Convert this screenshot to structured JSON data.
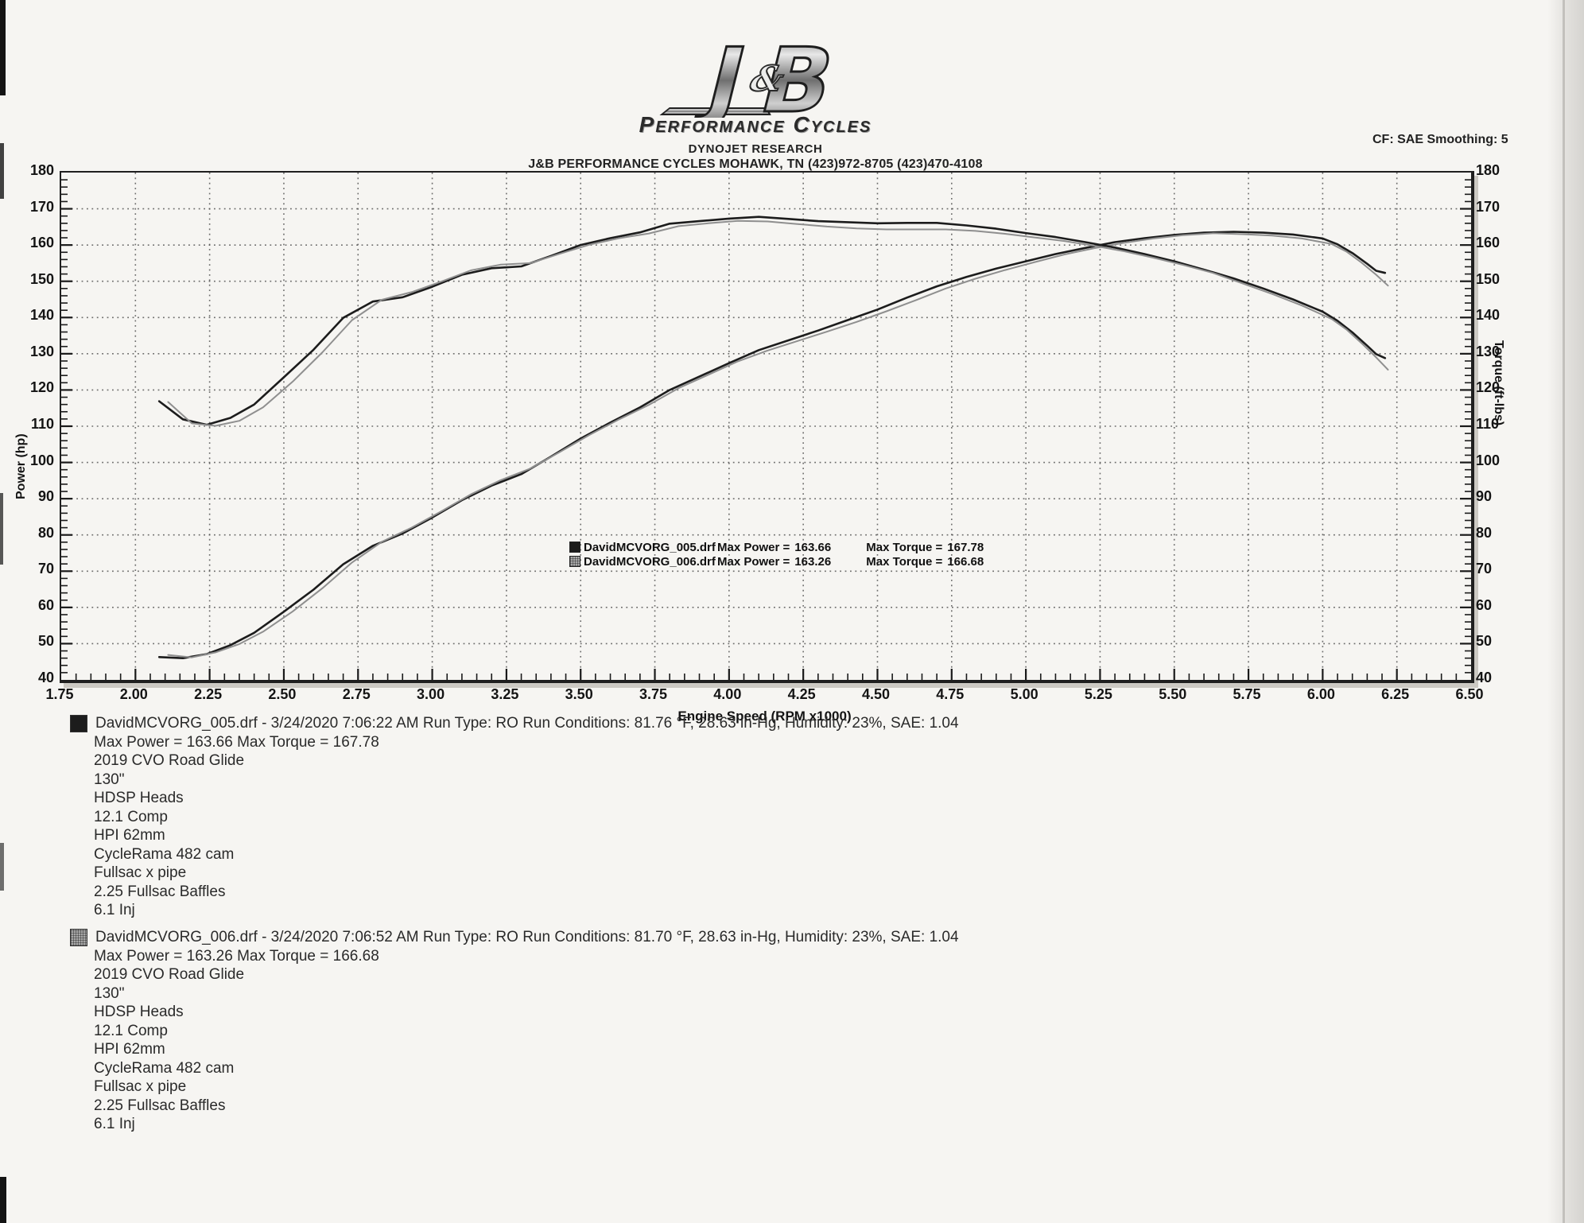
{
  "header": {
    "logo_j": "J",
    "logo_amp": "&",
    "logo_b": "B",
    "logo_sub": "Performance Cycles",
    "line1": "DYNOJET RESEARCH",
    "line2": "J&B PERFORMANCE CYCLES MOHAWK, TN  (423)972-8705 (423)470-4108",
    "correction_smoothing": "CF: SAE  Smoothing: 5"
  },
  "chart_data": {
    "type": "line",
    "xlabel": "Engine Speed (RPM x1000)",
    "ylabel_left": "Power (hp)",
    "ylabel_right": "Torque (ft-lbs)",
    "xlim": [
      1.75,
      6.5
    ],
    "ylim": [
      40,
      180
    ],
    "grid": "dotted",
    "legend_position": "inside lower-center",
    "xticks": [
      "1.75",
      "2.00",
      "2.25",
      "2.50",
      "2.75",
      "3.00",
      "3.25",
      "3.50",
      "3.75",
      "4.00",
      "4.25",
      "4.50",
      "4.75",
      "5.00",
      "5.25",
      "5.50",
      "5.75",
      "6.00",
      "6.25",
      "6.50"
    ],
    "yticks_left": [
      "180",
      "170",
      "160",
      "150",
      "140",
      "130",
      "120",
      "110",
      "100",
      "90",
      "80",
      "70",
      "60",
      "50",
      "40"
    ],
    "yticks_right": [
      "180",
      "170",
      "160",
      "150",
      "140",
      "130",
      "120",
      "110",
      "100",
      "90",
      "80",
      "70",
      "60",
      "50",
      "40"
    ],
    "colors": {
      "run1": "#1c1c1c",
      "run2": "#8f8f8f"
    },
    "series": [
      {
        "name": "DavidMCVORG_005.drf Power (hp)",
        "axis": "left",
        "color": "#1c1c1c",
        "width": 2.6,
        "points": [
          [
            2.08,
            46.3
          ],
          [
            2.16,
            46.0
          ],
          [
            2.24,
            47.1
          ],
          [
            2.32,
            49.6
          ],
          [
            2.4,
            53.0
          ],
          [
            2.5,
            58.8
          ],
          [
            2.6,
            64.9
          ],
          [
            2.7,
            71.9
          ],
          [
            2.8,
            77.0
          ],
          [
            2.9,
            80.4
          ],
          [
            3.0,
            84.8
          ],
          [
            3.1,
            89.6
          ],
          [
            3.2,
            93.6
          ],
          [
            3.3,
            96.8
          ],
          [
            3.4,
            101.6
          ],
          [
            3.5,
            106.6
          ],
          [
            3.6,
            111.0
          ],
          [
            3.7,
            115.2
          ],
          [
            3.8,
            120.0
          ],
          [
            3.9,
            123.7
          ],
          [
            4.0,
            127.4
          ],
          [
            4.1,
            131.0
          ],
          [
            4.2,
            133.7
          ],
          [
            4.3,
            136.4
          ],
          [
            4.4,
            139.3
          ],
          [
            4.5,
            142.2
          ],
          [
            4.6,
            145.5
          ],
          [
            4.7,
            148.6
          ],
          [
            4.8,
            151.2
          ],
          [
            4.9,
            153.5
          ],
          [
            5.0,
            155.5
          ],
          [
            5.1,
            157.5
          ],
          [
            5.2,
            159.2
          ],
          [
            5.3,
            160.8
          ],
          [
            5.4,
            161.9
          ],
          [
            5.5,
            162.8
          ],
          [
            5.6,
            163.4
          ],
          [
            5.7,
            163.66
          ],
          [
            5.8,
            163.4
          ],
          [
            5.9,
            162.9
          ],
          [
            6.0,
            161.8
          ],
          [
            6.05,
            160.2
          ],
          [
            6.1,
            157.8
          ],
          [
            6.15,
            154.8
          ],
          [
            6.18,
            152.9
          ],
          [
            6.21,
            152.3
          ]
        ]
      },
      {
        "name": "DavidMCVORG_006.drf Power (hp)",
        "axis": "left",
        "color": "#8f8f8f",
        "width": 2.0,
        "points": [
          [
            2.11,
            46.9
          ],
          [
            2.19,
            46.2
          ],
          [
            2.27,
            47.6
          ],
          [
            2.35,
            49.9
          ],
          [
            2.43,
            53.3
          ],
          [
            2.53,
            58.9
          ],
          [
            2.63,
            65.3
          ],
          [
            2.73,
            72.4
          ],
          [
            2.83,
            78.1
          ],
          [
            2.93,
            82.0
          ],
          [
            3.03,
            86.5
          ],
          [
            3.13,
            91.2
          ],
          [
            3.23,
            95.1
          ],
          [
            3.33,
            98.3
          ],
          [
            3.43,
            102.9
          ],
          [
            3.53,
            107.6
          ],
          [
            3.63,
            111.9
          ],
          [
            3.73,
            115.9
          ],
          [
            3.83,
            120.5
          ],
          [
            3.93,
            124.2
          ],
          [
            4.03,
            127.9
          ],
          [
            4.13,
            130.9
          ],
          [
            4.23,
            133.5
          ],
          [
            4.33,
            136.1
          ],
          [
            4.43,
            138.8
          ],
          [
            4.53,
            141.7
          ],
          [
            4.63,
            144.8
          ],
          [
            4.73,
            148.0
          ],
          [
            4.83,
            150.7
          ],
          [
            4.93,
            153.1
          ],
          [
            5.03,
            155.3
          ],
          [
            5.13,
            157.4
          ],
          [
            5.23,
            159.1
          ],
          [
            5.33,
            160.6
          ],
          [
            5.43,
            161.8
          ],
          [
            5.53,
            162.7
          ],
          [
            5.63,
            163.26
          ],
          [
            5.73,
            163.0
          ],
          [
            5.83,
            162.6
          ],
          [
            5.93,
            161.8
          ],
          [
            6.03,
            160.3
          ],
          [
            6.08,
            158.2
          ],
          [
            6.13,
            155.2
          ],
          [
            6.18,
            151.8
          ],
          [
            6.22,
            148.8
          ]
        ]
      },
      {
        "name": "DavidMCVORG_005.drf Torque (ft-lbs)",
        "axis": "right",
        "color": "#1c1c1c",
        "width": 2.6,
        "points": [
          [
            2.08,
            116.9
          ],
          [
            2.16,
            111.9
          ],
          [
            2.24,
            110.4
          ],
          [
            2.32,
            112.3
          ],
          [
            2.4,
            116.0
          ],
          [
            2.5,
            123.5
          ],
          [
            2.6,
            131.1
          ],
          [
            2.7,
            139.9
          ],
          [
            2.8,
            144.4
          ],
          [
            2.9,
            145.6
          ],
          [
            3.0,
            148.5
          ],
          [
            3.1,
            151.8
          ],
          [
            3.2,
            153.6
          ],
          [
            3.3,
            154.1
          ],
          [
            3.4,
            157.0
          ],
          [
            3.5,
            160.0
          ],
          [
            3.6,
            161.9
          ],
          [
            3.7,
            163.5
          ],
          [
            3.8,
            165.9
          ],
          [
            3.9,
            166.6
          ],
          [
            4.0,
            167.3
          ],
          [
            4.1,
            167.78
          ],
          [
            4.2,
            167.2
          ],
          [
            4.3,
            166.6
          ],
          [
            4.4,
            166.3
          ],
          [
            4.5,
            166.0
          ],
          [
            4.6,
            166.1
          ],
          [
            4.7,
            166.1
          ],
          [
            4.8,
            165.4
          ],
          [
            4.9,
            164.5
          ],
          [
            5.0,
            163.3
          ],
          [
            5.1,
            162.2
          ],
          [
            5.2,
            160.8
          ],
          [
            5.3,
            159.3
          ],
          [
            5.4,
            157.5
          ],
          [
            5.5,
            155.5
          ],
          [
            5.6,
            153.2
          ],
          [
            5.7,
            150.8
          ],
          [
            5.8,
            148.0
          ],
          [
            5.9,
            145.0
          ],
          [
            6.0,
            141.6
          ],
          [
            6.05,
            139.1
          ],
          [
            6.1,
            135.9
          ],
          [
            6.15,
            132.2
          ],
          [
            6.18,
            129.9
          ],
          [
            6.21,
            128.8
          ]
        ]
      },
      {
        "name": "DavidMCVORG_006.drf Torque (ft-lbs)",
        "axis": "right",
        "color": "#8f8f8f",
        "width": 2.0,
        "points": [
          [
            2.11,
            116.7
          ],
          [
            2.19,
            110.8
          ],
          [
            2.27,
            110.1
          ],
          [
            2.35,
            111.5
          ],
          [
            2.43,
            115.2
          ],
          [
            2.53,
            122.3
          ],
          [
            2.63,
            130.4
          ],
          [
            2.73,
            139.3
          ],
          [
            2.83,
            144.9
          ],
          [
            2.93,
            147.0
          ],
          [
            3.03,
            149.9
          ],
          [
            3.13,
            153.0
          ],
          [
            3.23,
            154.6
          ],
          [
            3.33,
            155.0
          ],
          [
            3.43,
            157.6
          ],
          [
            3.53,
            160.1
          ],
          [
            3.63,
            161.9
          ],
          [
            3.73,
            163.2
          ],
          [
            3.83,
            165.2
          ],
          [
            3.93,
            166.0
          ],
          [
            4.03,
            166.68
          ],
          [
            4.13,
            166.5
          ],
          [
            4.23,
            165.8
          ],
          [
            4.33,
            165.1
          ],
          [
            4.43,
            164.6
          ],
          [
            4.53,
            164.3
          ],
          [
            4.63,
            164.3
          ],
          [
            4.73,
            164.3
          ],
          [
            4.83,
            163.9
          ],
          [
            4.93,
            163.1
          ],
          [
            5.03,
            162.1
          ],
          [
            5.13,
            161.1
          ],
          [
            5.23,
            159.8
          ],
          [
            5.33,
            158.3
          ],
          [
            5.43,
            156.5
          ],
          [
            5.53,
            154.5
          ],
          [
            5.63,
            152.3
          ],
          [
            5.73,
            149.4
          ],
          [
            5.83,
            146.5
          ],
          [
            5.93,
            143.3
          ],
          [
            6.03,
            139.6
          ],
          [
            6.08,
            136.7
          ],
          [
            6.13,
            133.0
          ],
          [
            6.18,
            129.0
          ],
          [
            6.22,
            125.6
          ]
        ]
      }
    ]
  },
  "legend": {
    "power_label": "Max Power =",
    "torque_label": "Max Torque =",
    "rows": [
      {
        "file": "DavidMCVORG_005.drf",
        "max_power": "163.66",
        "max_torque": "167.78"
      },
      {
        "file": "DavidMCVORG_006.drf",
        "max_power": "163.26",
        "max_torque": "166.68"
      }
    ]
  },
  "footer": {
    "blocks": [
      {
        "line1": "DavidMCVORG_005.drf - 3/24/2020 7:06:22 AM  Run Type: RO  Run Conditions: 81.76 °F, 28.63 in-Hg,  Humidity:  23%, SAE: 1.04",
        "line2": "Max Power = 163.66  Max Torque = 167.78",
        "mods": [
          "2019 CVO Road Glide",
          "130\"",
          "HDSP Heads",
          "12.1 Comp",
          "HPI  62mm",
          "CycleRama 482 cam",
          "Fullsac x pipe",
          "2.25 Fullsac Baffles",
          "6.1 Inj"
        ]
      },
      {
        "line1": "DavidMCVORG_006.drf - 3/24/2020 7:06:52 AM  Run Type: RO  Run Conditions: 81.70 °F, 28.63 in-Hg,  Humidity:  23%, SAE: 1.04",
        "line2": "Max Power = 163.26  Max Torque = 166.68",
        "mods": [
          "2019 CVO Road Glide",
          "130\"",
          "HDSP Heads",
          "12.1 Comp",
          "HPI  62mm",
          "CycleRama 482 cam",
          "Fullsac x pipe",
          "2.25 Fullsac Baffles",
          "6.1 Inj"
        ]
      }
    ]
  }
}
